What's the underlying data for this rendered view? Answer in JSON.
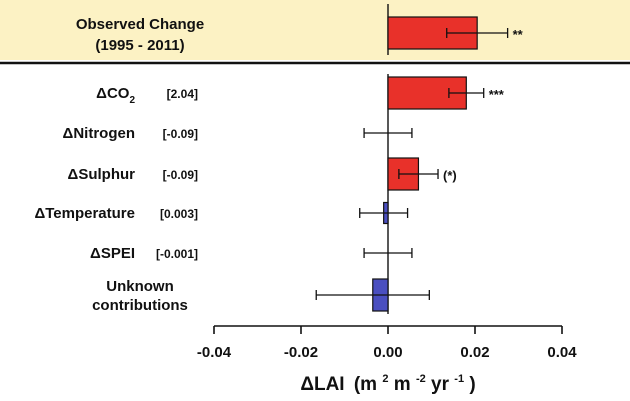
{
  "chart_data": {
    "type": "bar",
    "orientation": "horizontal",
    "xlabel": {
      "delta": "ΔLAI",
      "unit_pre": "(m",
      "sup1": "2",
      "unit_mid": " m",
      "sup2": "-2",
      "unit_mid2": " yr",
      "sup3": "-1",
      "unit_post": ")"
    },
    "xlim": [
      -0.04,
      0.04
    ],
    "xticks": [
      "-0.04",
      "-0.02",
      "0.00",
      "0.02",
      "0.04"
    ],
    "xtick_values": [
      -0.04,
      -0.02,
      0.0,
      0.02,
      0.04
    ],
    "observed": {
      "label_line1": "Observed Change",
      "label_line2": "(1995 - 2011)",
      "value": 0.0205,
      "err_low": 0.0135,
      "err_high": 0.0275,
      "significance": "**",
      "color": "#e8312a",
      "highlight_color": "#fcf2c4"
    },
    "drivers": [
      {
        "label": "ΔCO",
        "subscript": "2",
        "bracket": "[2.04]",
        "value": 0.018,
        "err_low": 0.014,
        "err_high": 0.022,
        "significance": "***",
        "color": "#e8312a"
      },
      {
        "label": "ΔNitrogen",
        "subscript": "",
        "bracket": "[-0.09]",
        "value": 0.0,
        "err_low": -0.0055,
        "err_high": 0.0055,
        "significance": "",
        "color": "#e8312a"
      },
      {
        "label": "ΔSulphur",
        "subscript": "",
        "bracket": "[-0.09]",
        "value": 0.007,
        "err_low": 0.0025,
        "err_high": 0.0115,
        "significance": "(*)",
        "color": "#e8312a"
      },
      {
        "label": "ΔTemperature",
        "subscript": "",
        "bracket": "[0.003]",
        "value": -0.001,
        "err_low": -0.0065,
        "err_high": 0.0045,
        "significance": "",
        "color": "#4a4fc0"
      },
      {
        "label": "ΔSPEI",
        "subscript": "",
        "bracket": "[-0.001]",
        "value": 0.0,
        "err_low": -0.0055,
        "err_high": 0.0055,
        "significance": "",
        "color": "#4a4fc0"
      },
      {
        "label": "Unknown",
        "label2": "contributions",
        "subscript": "",
        "bracket": "",
        "value": -0.0035,
        "err_low": -0.0165,
        "err_high": 0.0095,
        "significance": "",
        "color": "#4a4fc0"
      }
    ]
  }
}
